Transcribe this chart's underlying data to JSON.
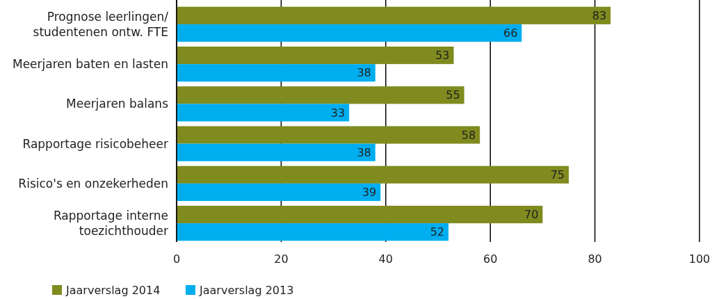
{
  "chart_data": {
    "type": "bar",
    "orientation": "horizontal",
    "categories": [
      "Prognose leerlingen/ studentenen ontw. FTE",
      "Meerjaren baten en lasten",
      "Meerjaren balans",
      "Rapportage risicobeheer",
      "Risico's en onzekerheden",
      "Rapportage interne toezichthouder"
    ],
    "series": [
      {
        "name": "Jaarverslag 2014",
        "color": "#7f8b1e",
        "values": [
          83,
          53,
          55,
          58,
          75,
          70
        ]
      },
      {
        "name": "Jaarverslag 2013",
        "color": "#00aeef",
        "values": [
          66,
          38,
          33,
          38,
          39,
          52
        ]
      }
    ],
    "xlim": [
      0,
      100
    ],
    "xticks": [
      0,
      20,
      40,
      60,
      80,
      100
    ],
    "grid": "x",
    "legend": "bottom left",
    "data_labels": true
  }
}
